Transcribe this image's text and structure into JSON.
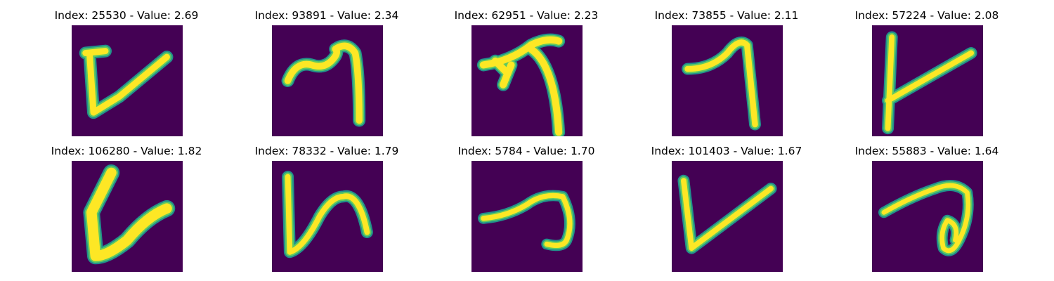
{
  "figure": {
    "panels": [
      {
        "title": "Index: 25530 - Value: 2.69",
        "index": 25530,
        "value": 2.69,
        "glyph": "v-glyph"
      },
      {
        "title": "Index: 93891 - Value: 2.34",
        "index": 93891,
        "value": 2.34,
        "glyph": "m-glyph"
      },
      {
        "title": "Index: 62951 - Value: 2.23",
        "index": 62951,
        "value": 2.23,
        "glyph": "arrow-glyph"
      },
      {
        "title": "Index: 73855 - Value: 2.11",
        "index": 73855,
        "value": 2.11,
        "glyph": "seven-glyph"
      },
      {
        "title": "Index: 57224 - Value: 2.08",
        "index": 57224,
        "value": 2.08,
        "glyph": "v-glyph"
      },
      {
        "title": "Index: 106280 - Value: 1.82",
        "index": 106280,
        "value": 1.82,
        "glyph": "v-glyph"
      },
      {
        "title": "Index: 78332 - Value: 1.79",
        "index": 78332,
        "value": 1.79,
        "glyph": "h-glyph"
      },
      {
        "title": "Index: 5784 - Value: 1.70",
        "index": 5784,
        "value": 1.7,
        "glyph": "hook-glyph"
      },
      {
        "title": "Index: 101403 - Value: 1.67",
        "index": 101403,
        "value": 1.67,
        "glyph": "v-glyph"
      },
      {
        "title": "Index: 55883 - Value: 1.64",
        "index": 55883,
        "value": 1.64,
        "glyph": "loop-glyph"
      }
    ]
  },
  "colors": {
    "background": "#440154",
    "stroke_core": "#fde725",
    "stroke_edge": "#21918c",
    "stroke_mid": "#5ec962"
  }
}
